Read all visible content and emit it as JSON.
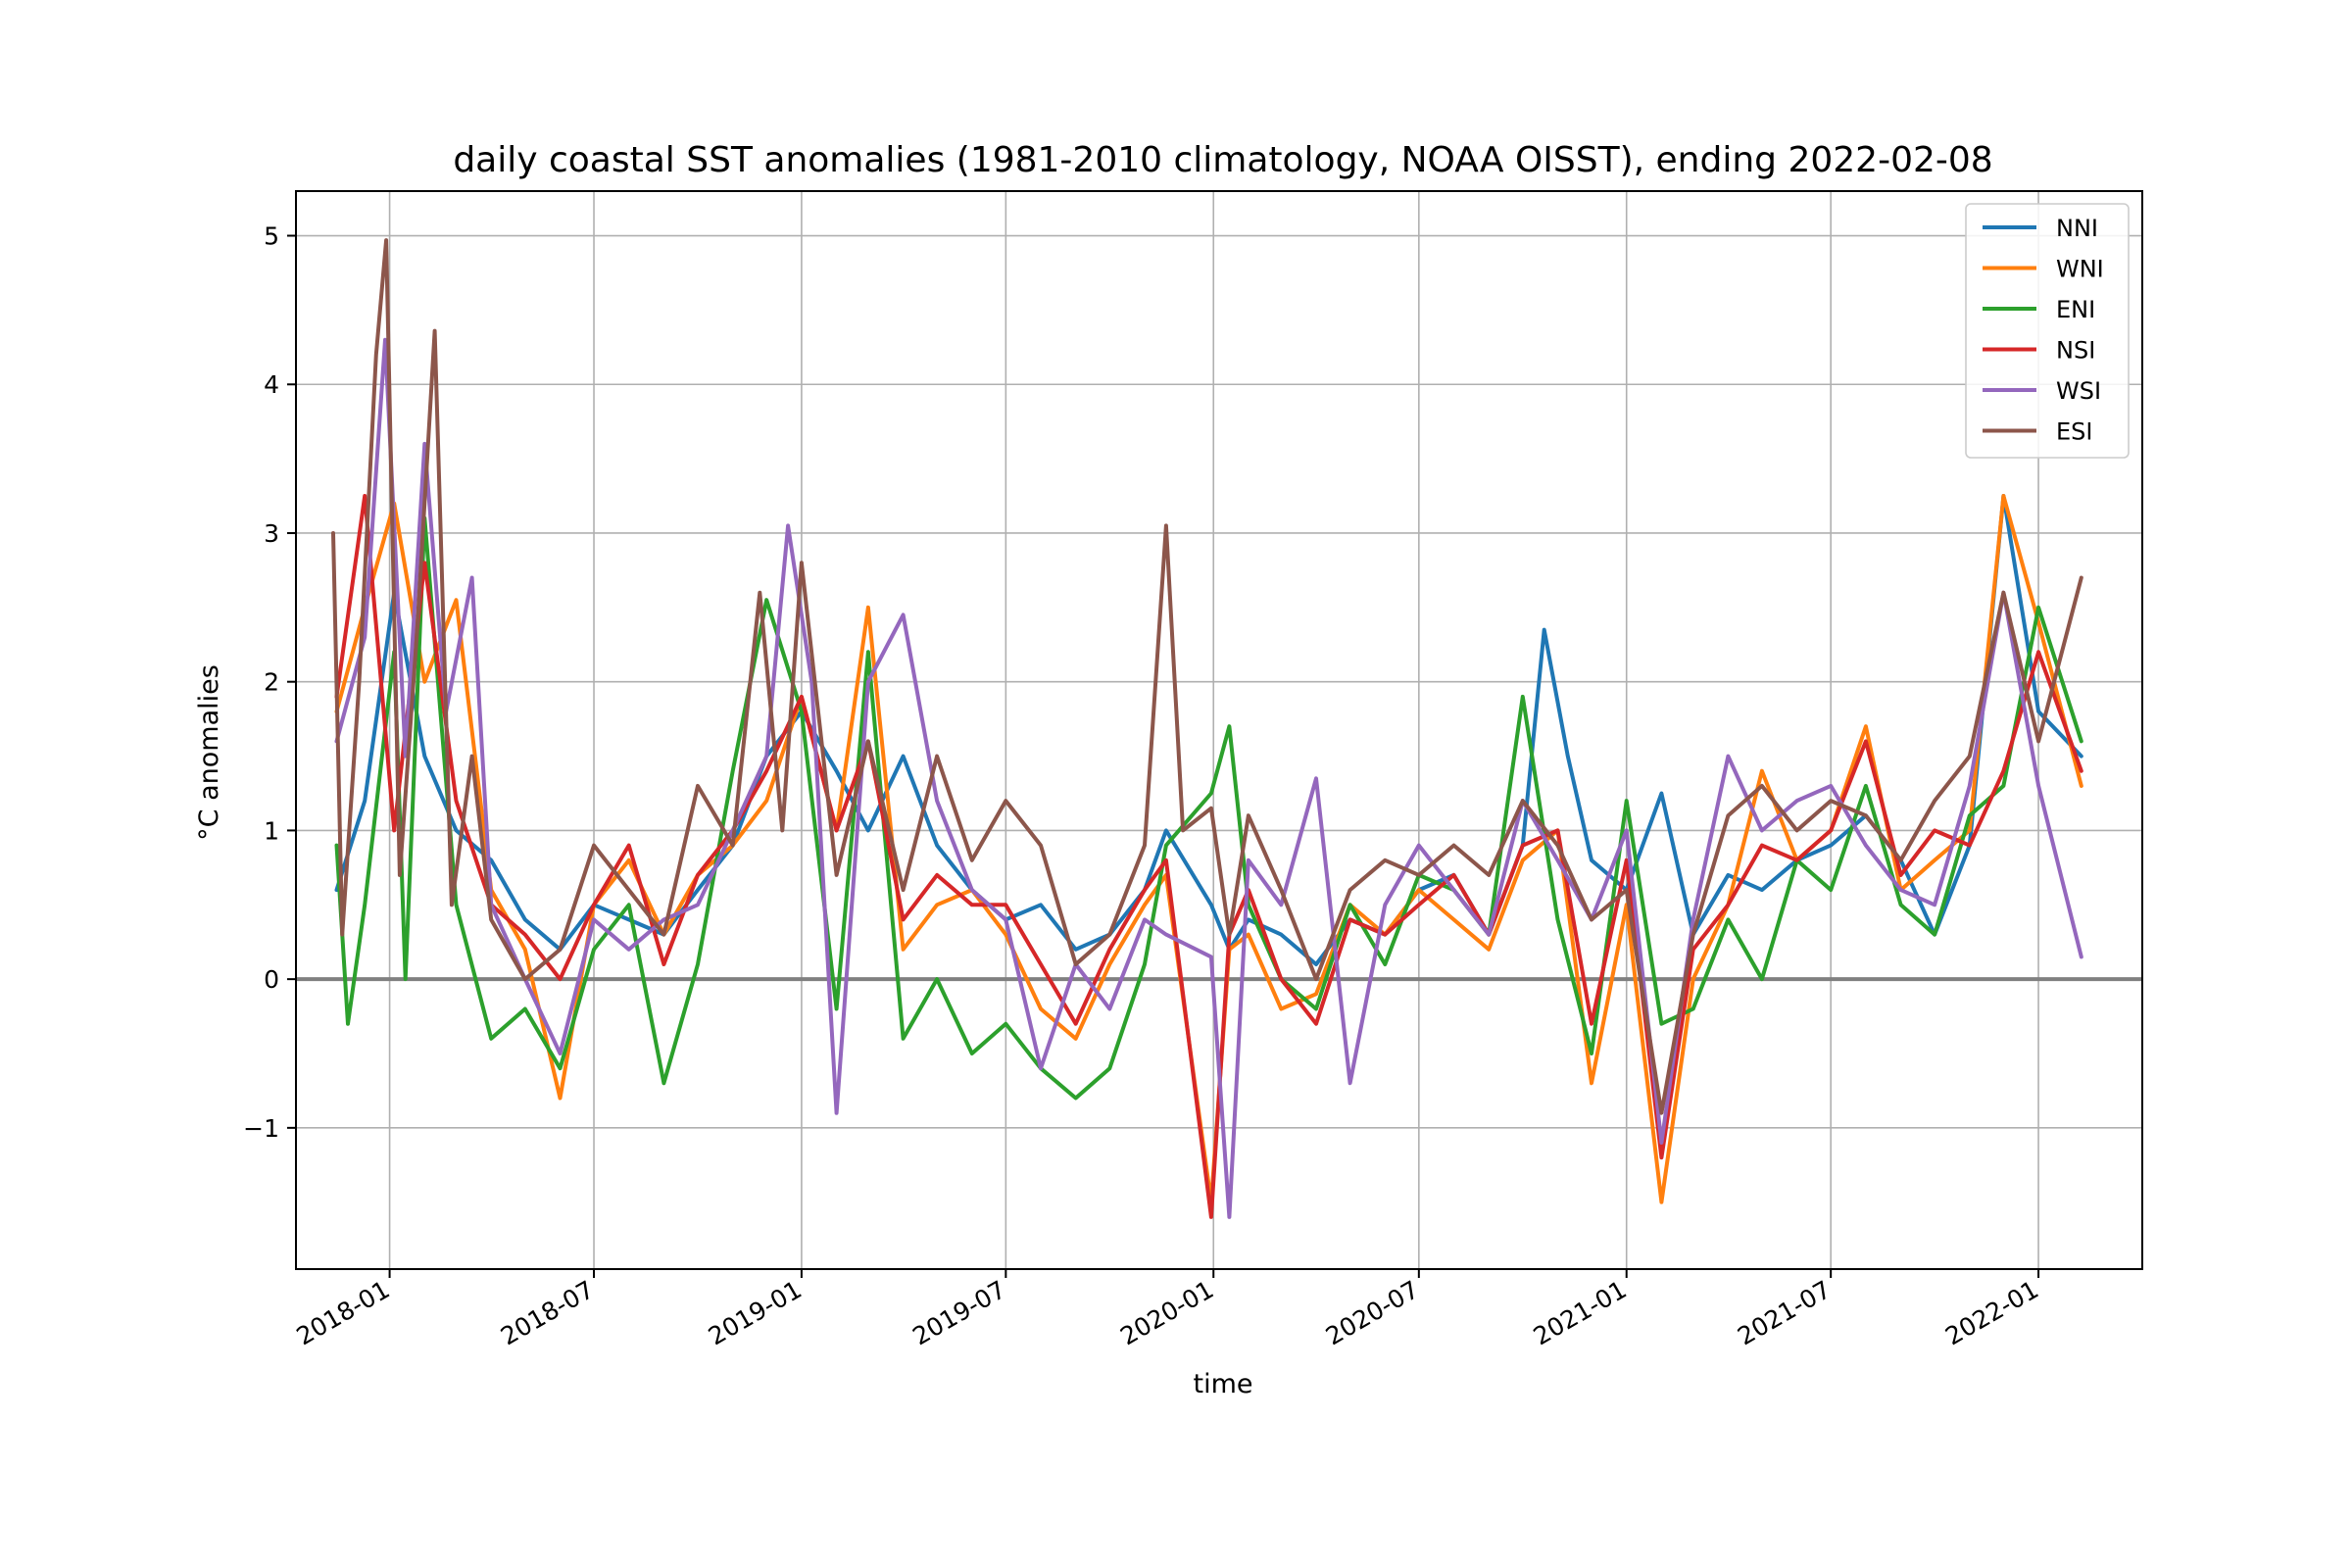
{
  "chart_data": {
    "type": "line",
    "title": "daily coastal SST anomalies (1981-2010 climatology, NOAA OISST), ending 2022-02-08",
    "xlabel": "time",
    "ylabel": "°C anomalies",
    "xlim": [
      "2017-10-10",
      "2022-04-03"
    ],
    "ylim": [
      -1.95,
      5.3
    ],
    "x_ticks": [
      "2018-01",
      "2018-07",
      "2019-01",
      "2019-07",
      "2020-01",
      "2020-07",
      "2021-01",
      "2021-07",
      "2022-01"
    ],
    "y_ticks": [
      -1,
      0,
      1,
      2,
      3,
      4,
      5
    ],
    "y_tick_labels": [
      "−1",
      "0",
      "1",
      "2",
      "3",
      "4",
      "5"
    ],
    "grid": true,
    "legend_position": "top-right",
    "reference_line": {
      "y": 0,
      "color": "#808080"
    },
    "series": [
      {
        "name": "NNI",
        "color": "#1f77b4",
        "x": [
          "2017-11-15",
          "2017-12-10",
          "2018-01-05",
          "2018-02-01",
          "2018-03-01",
          "2018-04-01",
          "2018-05-01",
          "2018-06-01",
          "2018-07-01",
          "2018-08-01",
          "2018-09-01",
          "2018-10-01",
          "2018-11-01",
          "2018-12-01",
          "2019-01-01",
          "2019-02-01",
          "2019-03-01",
          "2019-04-01",
          "2019-05-01",
          "2019-06-01",
          "2019-07-01",
          "2019-08-01",
          "2019-09-01",
          "2019-10-01",
          "2019-11-01",
          "2019-11-20",
          "2019-12-30",
          "2020-01-15",
          "2020-02-01",
          "2020-03-01",
          "2020-04-01",
          "2020-05-01",
          "2020-06-01",
          "2020-07-01",
          "2020-08-01",
          "2020-09-01",
          "2020-10-01",
          "2020-10-20",
          "2020-11-10",
          "2020-12-01",
          "2021-01-01",
          "2021-02-01",
          "2021-03-01",
          "2021-04-01",
          "2021-05-01",
          "2021-06-01",
          "2021-07-01",
          "2021-08-01",
          "2021-09-01",
          "2021-10-01",
          "2021-11-01",
          "2021-12-01",
          "2022-01-01",
          "2022-02-08"
        ],
        "y": [
          0.6,
          1.2,
          2.6,
          1.5,
          1.0,
          0.8,
          0.4,
          0.2,
          0.5,
          0.4,
          0.3,
          0.6,
          0.9,
          1.5,
          1.8,
          1.4,
          1.0,
          1.5,
          0.9,
          0.6,
          0.4,
          0.5,
          0.2,
          0.3,
          0.6,
          1.0,
          0.5,
          0.2,
          0.4,
          0.3,
          0.1,
          0.4,
          0.3,
          0.6,
          0.7,
          0.3,
          0.9,
          2.35,
          1.5,
          0.8,
          0.6,
          1.25,
          0.3,
          0.7,
          0.6,
          0.8,
          0.9,
          1.1,
          0.8,
          0.3,
          0.9,
          3.25,
          1.8,
          1.5
        ]
      },
      {
        "name": "WNI",
        "color": "#ff7f0e",
        "x": [
          "2017-11-15",
          "2017-12-10",
          "2018-01-05",
          "2018-02-01",
          "2018-03-01",
          "2018-04-01",
          "2018-05-01",
          "2018-06-01",
          "2018-07-01",
          "2018-08-01",
          "2018-09-01",
          "2018-10-01",
          "2018-11-01",
          "2018-12-01",
          "2019-01-01",
          "2019-02-01",
          "2019-03-01",
          "2019-04-01",
          "2019-05-01",
          "2019-06-01",
          "2019-07-01",
          "2019-08-01",
          "2019-09-01",
          "2019-10-01",
          "2019-11-01",
          "2019-11-20",
          "2019-12-30",
          "2020-01-15",
          "2020-02-01",
          "2020-03-01",
          "2020-04-01",
          "2020-05-01",
          "2020-06-01",
          "2020-07-01",
          "2020-08-01",
          "2020-09-01",
          "2020-10-01",
          "2020-11-01",
          "2020-12-01",
          "2021-01-01",
          "2021-02-01",
          "2021-03-01",
          "2021-04-01",
          "2021-05-01",
          "2021-06-01",
          "2021-07-01",
          "2021-08-01",
          "2021-09-01",
          "2021-10-01",
          "2021-11-01",
          "2021-12-01",
          "2022-01-01",
          "2022-02-08"
        ],
        "y": [
          1.8,
          2.5,
          3.2,
          2.0,
          2.55,
          0.6,
          0.2,
          -0.8,
          0.5,
          0.8,
          0.3,
          0.7,
          0.9,
          1.2,
          1.9,
          1.0,
          2.5,
          0.2,
          0.5,
          0.6,
          0.3,
          -0.2,
          -0.4,
          0.1,
          0.5,
          0.7,
          -1.5,
          0.2,
          0.3,
          -0.2,
          -0.1,
          0.5,
          0.3,
          0.6,
          0.4,
          0.2,
          0.8,
          1.0,
          -0.7,
          0.5,
          -1.5,
          0.0,
          0.5,
          1.4,
          0.8,
          1.0,
          1.7,
          0.6,
          0.8,
          1.0,
          3.25,
          2.4,
          1.3
        ]
      },
      {
        "name": "ENI",
        "color": "#2ca02c",
        "x": [
          "2017-11-15",
          "2017-11-25",
          "2017-12-10",
          "2018-01-05",
          "2018-01-15",
          "2018-02-01",
          "2018-03-01",
          "2018-04-01",
          "2018-05-01",
          "2018-06-01",
          "2018-07-01",
          "2018-08-01",
          "2018-09-01",
          "2018-10-01",
          "2018-11-01",
          "2018-12-01",
          "2019-01-01",
          "2019-02-01",
          "2019-03-01",
          "2019-04-01",
          "2019-05-01",
          "2019-06-01",
          "2019-07-01",
          "2019-08-01",
          "2019-09-01",
          "2019-10-01",
          "2019-11-01",
          "2019-11-20",
          "2019-12-30",
          "2020-01-15",
          "2020-02-01",
          "2020-03-01",
          "2020-04-01",
          "2020-05-01",
          "2020-06-01",
          "2020-07-01",
          "2020-08-01",
          "2020-09-01",
          "2020-10-01",
          "2020-11-01",
          "2020-12-01",
          "2021-01-01",
          "2021-02-01",
          "2021-03-01",
          "2021-04-01",
          "2021-05-01",
          "2021-06-01",
          "2021-07-01",
          "2021-08-01",
          "2021-09-01",
          "2021-10-01",
          "2021-11-01",
          "2021-12-01",
          "2022-01-01",
          "2022-02-08"
        ],
        "y": [
          0.9,
          -0.3,
          0.5,
          2.2,
          0.0,
          3.1,
          0.5,
          -0.4,
          -0.2,
          -0.6,
          0.2,
          0.5,
          -0.7,
          0.1,
          1.4,
          2.55,
          1.8,
          -0.2,
          2.2,
          -0.4,
          0.0,
          -0.5,
          -0.3,
          -0.6,
          -0.8,
          -0.6,
          0.1,
          0.9,
          1.25,
          1.7,
          0.5,
          0.0,
          -0.2,
          0.5,
          0.1,
          0.7,
          0.6,
          0.3,
          1.9,
          0.4,
          -0.5,
          1.2,
          -0.3,
          -0.2,
          0.4,
          0.0,
          0.8,
          0.6,
          1.3,
          0.5,
          0.3,
          1.1,
          1.3,
          2.5,
          1.6
        ]
      },
      {
        "name": "NSI",
        "color": "#d62728",
        "x": [
          "2017-11-15",
          "2017-12-10",
          "2018-01-05",
          "2018-02-01",
          "2018-03-01",
          "2018-04-01",
          "2018-05-01",
          "2018-06-01",
          "2018-07-01",
          "2018-08-01",
          "2018-09-01",
          "2018-10-01",
          "2018-11-01",
          "2018-12-01",
          "2019-01-01",
          "2019-02-01",
          "2019-03-01",
          "2019-04-01",
          "2019-05-01",
          "2019-06-01",
          "2019-07-01",
          "2019-08-01",
          "2019-09-01",
          "2019-10-01",
          "2019-11-01",
          "2019-11-20",
          "2019-12-30",
          "2020-01-15",
          "2020-02-01",
          "2020-03-01",
          "2020-04-01",
          "2020-05-01",
          "2020-06-01",
          "2020-07-01",
          "2020-08-01",
          "2020-09-01",
          "2020-10-01",
          "2020-11-01",
          "2020-12-01",
          "2021-01-01",
          "2021-02-01",
          "2021-03-01",
          "2021-04-01",
          "2021-05-01",
          "2021-06-01",
          "2021-07-01",
          "2021-08-01",
          "2021-09-01",
          "2021-10-01",
          "2021-11-01",
          "2021-12-01",
          "2022-01-01",
          "2022-02-08"
        ],
        "y": [
          1.9,
          3.25,
          1.0,
          2.8,
          1.2,
          0.5,
          0.3,
          0.0,
          0.5,
          0.9,
          0.1,
          0.7,
          1.0,
          1.4,
          1.9,
          1.0,
          1.6,
          0.4,
          0.7,
          0.5,
          0.5,
          0.1,
          -0.3,
          0.2,
          0.6,
          0.8,
          -1.6,
          0.3,
          0.6,
          0.0,
          -0.3,
          0.4,
          0.3,
          0.5,
          0.7,
          0.3,
          0.9,
          1.0,
          -0.3,
          0.8,
          -1.2,
          0.2,
          0.5,
          0.9,
          0.8,
          1.0,
          1.6,
          0.7,
          1.0,
          0.9,
          1.4,
          2.2,
          1.4
        ]
      },
      {
        "name": "WSI",
        "color": "#9467bd",
        "x": [
          "2017-11-15",
          "2017-12-10",
          "2017-12-28",
          "2018-01-15",
          "2018-02-01",
          "2018-02-20",
          "2018-03-15",
          "2018-04-01",
          "2018-05-01",
          "2018-06-01",
          "2018-07-01",
          "2018-08-01",
          "2018-09-01",
          "2018-10-01",
          "2018-11-01",
          "2018-12-01",
          "2018-12-20",
          "2019-01-10",
          "2019-02-01",
          "2019-03-01",
          "2019-04-01",
          "2019-05-01",
          "2019-06-01",
          "2019-07-01",
          "2019-08-01",
          "2019-09-01",
          "2019-10-01",
          "2019-11-01",
          "2019-11-20",
          "2019-12-30",
          "2020-01-15",
          "2020-02-01",
          "2020-03-01",
          "2020-04-01",
          "2020-05-01",
          "2020-06-01",
          "2020-07-01",
          "2020-08-01",
          "2020-09-01",
          "2020-10-01",
          "2020-11-01",
          "2020-12-01",
          "2021-01-01",
          "2021-02-01",
          "2021-03-01",
          "2021-04-01",
          "2021-05-01",
          "2021-06-01",
          "2021-07-01",
          "2021-08-01",
          "2021-09-01",
          "2021-10-01",
          "2021-11-01",
          "2021-12-01",
          "2022-01-01",
          "2022-02-08"
        ],
        "y": [
          1.6,
          2.3,
          4.3,
          1.5,
          3.6,
          1.8,
          2.7,
          0.5,
          0.0,
          -0.5,
          0.4,
          0.2,
          0.4,
          0.5,
          1.0,
          1.5,
          3.05,
          2.0,
          -0.9,
          2.0,
          2.45,
          1.2,
          0.6,
          0.4,
          -0.6,
          0.1,
          -0.2,
          0.4,
          0.3,
          0.15,
          -1.6,
          0.8,
          0.5,
          1.35,
          -0.7,
          0.5,
          0.9,
          0.6,
          0.3,
          1.2,
          0.8,
          0.4,
          1.0,
          -1.1,
          0.4,
          1.5,
          1.0,
          1.2,
          1.3,
          0.9,
          0.6,
          0.5,
          1.3,
          2.6,
          1.3,
          0.15
        ]
      },
      {
        "name": "ESI",
        "color": "#8c564b",
        "x": [
          "2017-11-12",
          "2017-11-20",
          "2017-12-05",
          "2017-12-20",
          "2017-12-29",
          "2018-01-10",
          "2018-01-25",
          "2018-02-10",
          "2018-02-25",
          "2018-03-15",
          "2018-04-01",
          "2018-05-01",
          "2018-06-01",
          "2018-07-01",
          "2018-08-01",
          "2018-09-01",
          "2018-10-01",
          "2018-11-01",
          "2018-11-25",
          "2018-12-15",
          "2019-01-01",
          "2019-02-01",
          "2019-03-01",
          "2019-04-01",
          "2019-05-01",
          "2019-06-01",
          "2019-07-01",
          "2019-08-01",
          "2019-09-01",
          "2019-10-01",
          "2019-11-01",
          "2019-11-20",
          "2019-12-05",
          "2019-12-30",
          "2020-01-15",
          "2020-02-01",
          "2020-03-01",
          "2020-04-01",
          "2020-05-01",
          "2020-06-01",
          "2020-07-01",
          "2020-08-01",
          "2020-09-01",
          "2020-10-01",
          "2020-11-01",
          "2020-12-01",
          "2021-01-01",
          "2021-02-01",
          "2021-03-01",
          "2021-04-01",
          "2021-05-01",
          "2021-06-01",
          "2021-07-01",
          "2021-08-01",
          "2021-09-01",
          "2021-10-01",
          "2021-11-01",
          "2021-12-01",
          "2022-01-01",
          "2022-02-08"
        ],
        "y": [
          3.0,
          0.3,
          2.0,
          4.2,
          4.97,
          0.7,
          2.3,
          4.36,
          0.5,
          1.5,
          0.4,
          0.0,
          0.2,
          0.9,
          0.6,
          0.3,
          1.3,
          0.9,
          2.6,
          1.0,
          2.8,
          0.7,
          1.6,
          0.6,
          1.5,
          0.8,
          1.2,
          0.9,
          0.1,
          0.3,
          0.9,
          3.05,
          1.0,
          1.15,
          0.3,
          1.1,
          0.6,
          0.0,
          0.6,
          0.8,
          0.7,
          0.9,
          0.7,
          1.2,
          0.9,
          0.4,
          0.6,
          -0.9,
          0.3,
          1.1,
          1.3,
          1.0,
          1.2,
          1.1,
          0.8,
          1.2,
          1.5,
          2.6,
          1.6,
          2.7
        ]
      }
    ]
  }
}
